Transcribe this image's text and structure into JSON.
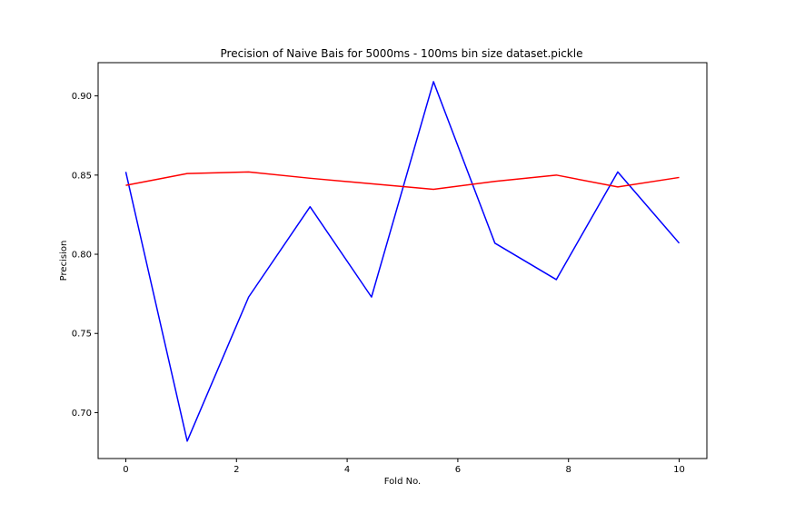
{
  "chart_data": {
    "type": "line",
    "title": "Precision of Naive Bais for 5000ms - 100ms bin size dataset.pickle",
    "xlabel": "Fold No.",
    "ylabel": "Precision",
    "xlim": [
      -0.5,
      10.5
    ],
    "ylim": [
      0.671,
      0.921
    ],
    "xticks": [
      0,
      2,
      4,
      6,
      8,
      10
    ],
    "xtick_labels": [
      "0",
      "2",
      "4",
      "6",
      "8",
      "10"
    ],
    "yticks": [
      0.7,
      0.75,
      0.8,
      0.85,
      0.9
    ],
    "ytick_labels": [
      "0.70",
      "0.75",
      "0.80",
      "0.85",
      "0.90"
    ],
    "grid": false,
    "legend": "none",
    "series": [
      {
        "color": "#0000ff",
        "x": [
          0,
          1.11,
          2.22,
          3.33,
          4.44,
          5.56,
          6.67,
          7.78,
          8.89,
          10
        ],
        "y": [
          0.852,
          0.682,
          0.773,
          0.83,
          0.773,
          0.909,
          0.807,
          0.784,
          0.852,
          0.807
        ]
      },
      {
        "color": "#ff0000",
        "x": [
          0,
          1.11,
          2.22,
          3.33,
          4.44,
          5.56,
          6.67,
          7.78,
          8.89,
          10
        ],
        "y": [
          0.8435,
          0.851,
          0.852,
          0.848,
          0.8445,
          0.841,
          0.846,
          0.85,
          0.8425,
          0.8485
        ]
      }
    ]
  }
}
